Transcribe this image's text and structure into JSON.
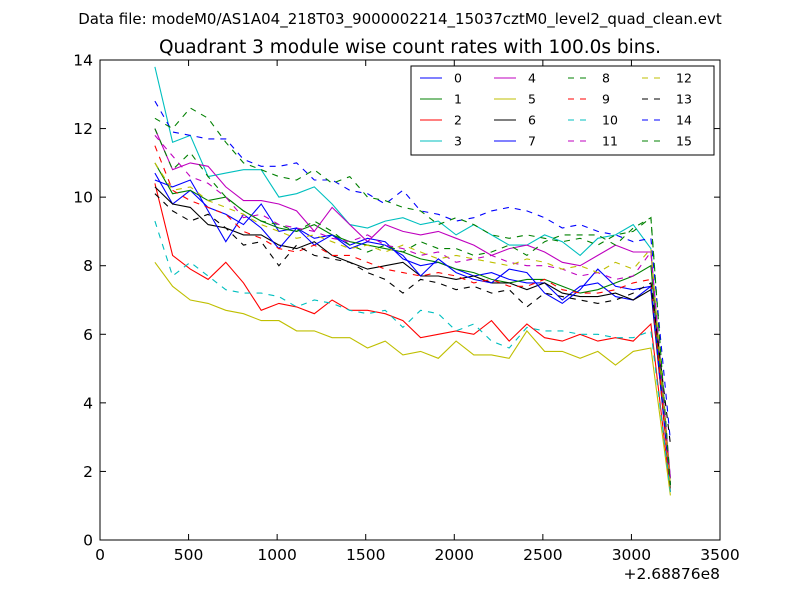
{
  "figure": {
    "suptitle": "Data file: modeM0/AS1A04_218T03_9000002214_15037cztM0_level2_quad_clean.evt",
    "title": "Quadrant 3 module wise count rates with 100.0s bins.",
    "x_offset_label": "+2.68876e8"
  },
  "chart_data": {
    "type": "line",
    "xlim": [
      0,
      3500
    ],
    "ylim": [
      0,
      14
    ],
    "x_ticks": [
      0,
      500,
      1000,
      1500,
      2000,
      2500,
      3000,
      3500
    ],
    "y_ticks": [
      0,
      2,
      4,
      6,
      8,
      10,
      12,
      14
    ],
    "x_offset": "+2.68876e8",
    "grid": false,
    "legend_position": "top-right",
    "x": [
      310,
      410,
      510,
      610,
      710,
      810,
      910,
      1010,
      1110,
      1210,
      1310,
      1410,
      1510,
      1610,
      1710,
      1810,
      1910,
      2010,
      2110,
      2210,
      2310,
      2410,
      2510,
      2610,
      2710,
      2810,
      2910,
      3010,
      3110,
      3220
    ],
    "series": [
      {
        "name": "0",
        "color": "#0000ff",
        "dash": "solid",
        "values": [
          10.7,
          9.8,
          10.2,
          9.7,
          9.5,
          9.2,
          9.8,
          9.0,
          9.1,
          8.8,
          8.9,
          8.6,
          8.8,
          8.7,
          8.2,
          8.0,
          8.1,
          7.9,
          7.7,
          7.8,
          7.6,
          7.5,
          7.5,
          7.0,
          7.4,
          7.5,
          7.1,
          7.0,
          7.4,
          1.8
        ]
      },
      {
        "name": "1",
        "color": "#008000",
        "dash": "solid",
        "values": [
          11.0,
          10.1,
          10.2,
          9.9,
          10.0,
          9.6,
          9.3,
          9.1,
          9.0,
          9.2,
          8.9,
          8.7,
          8.6,
          8.5,
          8.4,
          8.2,
          8.1,
          7.9,
          7.8,
          7.6,
          7.5,
          7.6,
          7.6,
          7.4,
          7.2,
          7.3,
          7.5,
          7.7,
          8.0,
          1.5
        ]
      },
      {
        "name": "2",
        "color": "#ff0000",
        "dash": "solid",
        "values": [
          10.4,
          8.3,
          7.9,
          7.6,
          8.1,
          7.5,
          6.7,
          6.9,
          6.8,
          6.6,
          7.0,
          6.7,
          6.7,
          6.6,
          6.4,
          5.9,
          6.0,
          6.1,
          6.0,
          6.4,
          5.8,
          6.3,
          5.9,
          5.8,
          6.0,
          5.8,
          5.9,
          5.8,
          6.3,
          1.4
        ]
      },
      {
        "name": "3",
        "color": "#00bfbf",
        "dash": "solid",
        "values": [
          13.8,
          11.6,
          11.8,
          10.6,
          10.7,
          10.8,
          10.8,
          10.0,
          10.1,
          10.3,
          9.8,
          9.2,
          9.1,
          9.3,
          9.4,
          9.2,
          9.3,
          8.9,
          9.2,
          8.9,
          8.6,
          8.6,
          8.9,
          8.7,
          8.3,
          8.8,
          8.9,
          9.2,
          8.5,
          1.6
        ]
      },
      {
        "name": "4",
        "color": "#bf00bf",
        "dash": "solid",
        "values": [
          12.0,
          10.8,
          11.0,
          10.9,
          10.3,
          9.9,
          9.9,
          9.8,
          9.6,
          9.0,
          9.7,
          9.2,
          8.7,
          9.2,
          9.0,
          8.9,
          9.0,
          8.8,
          8.6,
          8.3,
          8.5,
          8.6,
          8.4,
          8.1,
          8.0,
          8.3,
          8.6,
          8.4,
          8.4,
          1.8
        ]
      },
      {
        "name": "5",
        "color": "#bfbf00",
        "dash": "solid",
        "values": [
          8.1,
          7.4,
          7.0,
          6.9,
          6.7,
          6.6,
          6.4,
          6.4,
          6.1,
          6.1,
          5.9,
          5.9,
          5.6,
          5.8,
          5.4,
          5.5,
          5.3,
          5.8,
          5.4,
          5.4,
          5.3,
          6.1,
          5.5,
          5.5,
          5.3,
          5.5,
          5.1,
          5.5,
          5.6,
          1.3
        ]
      },
      {
        "name": "6",
        "color": "#000000",
        "dash": "solid",
        "values": [
          10.3,
          9.8,
          9.7,
          9.2,
          9.1,
          8.9,
          8.9,
          8.6,
          8.5,
          8.7,
          8.3,
          8.1,
          7.9,
          8.0,
          8.1,
          7.7,
          7.7,
          7.6,
          7.7,
          7.5,
          7.5,
          7.3,
          7.5,
          7.2,
          7.1,
          7.1,
          7.2,
          7.0,
          7.3,
          1.6
        ]
      },
      {
        "name": "7",
        "color": "#0000ff",
        "dash": "solid",
        "values": [
          10.5,
          10.3,
          10.5,
          9.6,
          8.7,
          9.5,
          9.1,
          8.5,
          9.1,
          8.6,
          8.9,
          8.5,
          8.7,
          8.6,
          8.3,
          7.7,
          8.2,
          7.8,
          7.6,
          7.5,
          7.9,
          7.8,
          7.2,
          6.9,
          7.3,
          7.9,
          7.4,
          7.3,
          7.4,
          1.6
        ]
      },
      {
        "name": "8",
        "color": "#008000",
        "dash": "dashed",
        "values": [
          12.0,
          10.8,
          11.3,
          10.6,
          10.0,
          9.6,
          9.3,
          9.2,
          9.0,
          9.3,
          9.0,
          8.6,
          8.4,
          8.6,
          8.4,
          8.7,
          8.5,
          8.5,
          8.3,
          8.4,
          8.6,
          8.3,
          8.7,
          8.9,
          8.9,
          8.9,
          8.6,
          9.1,
          9.4,
          1.5
        ]
      },
      {
        "name": "9",
        "color": "#ff0000",
        "dash": "dashed",
        "values": [
          11.5,
          10.2,
          9.9,
          9.7,
          9.5,
          9.0,
          8.8,
          8.5,
          8.4,
          8.6,
          8.3,
          8.3,
          8.1,
          7.9,
          7.8,
          7.7,
          7.8,
          7.7,
          7.5,
          7.6,
          7.4,
          7.4,
          7.6,
          7.3,
          7.2,
          7.2,
          7.3,
          7.5,
          7.6,
          1.5
        ]
      },
      {
        "name": "10",
        "color": "#00bfbf",
        "dash": "dashed",
        "values": [
          9.3,
          7.7,
          8.1,
          7.7,
          7.3,
          7.2,
          7.2,
          7.1,
          6.8,
          7.0,
          6.9,
          6.7,
          6.6,
          6.7,
          6.2,
          6.7,
          6.6,
          6.1,
          6.3,
          5.8,
          5.6,
          6.2,
          6.1,
          6.1,
          6.0,
          6.0,
          5.9,
          5.9,
          6.1,
          1.4
        ]
      },
      {
        "name": "11",
        "color": "#bf00bf",
        "dash": "dashed",
        "values": [
          11.8,
          11.2,
          10.6,
          10.4,
          10.0,
          9.4,
          9.5,
          9.2,
          9.1,
          9.0,
          8.8,
          8.7,
          8.9,
          8.6,
          8.5,
          8.3,
          8.4,
          8.1,
          8.2,
          8.3,
          8.1,
          8.0,
          8.0,
          7.9,
          7.7,
          7.8,
          7.6,
          7.7,
          8.4,
          1.7
        ]
      },
      {
        "name": "12",
        "color": "#bfbf00",
        "dash": "dashed",
        "values": [
          11.0,
          10.2,
          10.3,
          9.9,
          9.7,
          9.5,
          9.2,
          9.0,
          8.8,
          8.9,
          8.7,
          8.5,
          8.6,
          8.4,
          8.6,
          8.4,
          8.2,
          8.3,
          8.2,
          8.1,
          8.0,
          8.2,
          8.1,
          7.9,
          8.0,
          7.8,
          8.1,
          7.9,
          8.5,
          1.6
        ]
      },
      {
        "name": "13",
        "color": "#000000",
        "dash": "dashed",
        "values": [
          10.1,
          9.6,
          9.3,
          9.5,
          9.1,
          8.6,
          8.7,
          8.0,
          8.6,
          8.3,
          8.2,
          8.1,
          7.8,
          7.6,
          7.2,
          7.6,
          7.5,
          7.3,
          7.4,
          7.2,
          7.3,
          6.8,
          7.2,
          7.1,
          7.0,
          6.9,
          7.0,
          7.2,
          7.5,
          2.8
        ]
      },
      {
        "name": "14",
        "color": "#0000ff",
        "dash": "dashed",
        "values": [
          12.8,
          11.9,
          11.8,
          11.7,
          11.7,
          11.1,
          10.9,
          10.9,
          11.0,
          10.5,
          10.5,
          10.2,
          10.1,
          9.8,
          10.2,
          9.6,
          9.5,
          9.3,
          9.4,
          9.6,
          9.7,
          9.6,
          9.4,
          9.1,
          9.2,
          9.0,
          8.9,
          8.7,
          8.8,
          2.9
        ]
      },
      {
        "name": "15",
        "color": "#008000",
        "dash": "dashed",
        "values": [
          12.3,
          12.0,
          12.6,
          12.3,
          11.6,
          11.0,
          10.8,
          10.6,
          10.5,
          10.8,
          10.4,
          10.6,
          10.0,
          9.9,
          9.7,
          9.6,
          9.2,
          9.4,
          9.2,
          8.9,
          8.8,
          8.9,
          8.8,
          8.7,
          8.8,
          8.6,
          8.9,
          9.0,
          9.4,
          1.6
        ]
      }
    ]
  }
}
